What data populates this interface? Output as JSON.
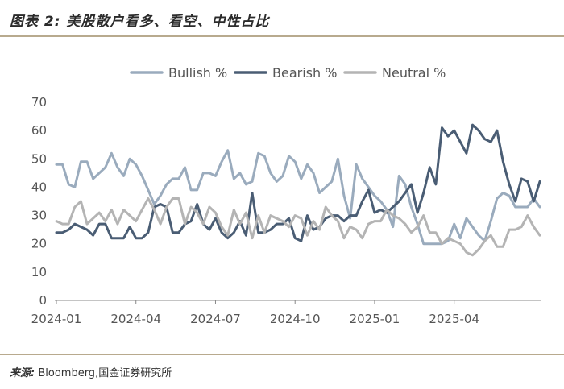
{
  "figure": {
    "title": "图表 2:  美股散户看多、看空、中性占比",
    "source_label": "来源:",
    "source_text": "Bloomberg,国金证券研究所"
  },
  "chart_data": {
    "type": "line",
    "title": "",
    "xlabel": "",
    "ylabel": "",
    "ylim": [
      0,
      70
    ],
    "yticks": [
      0,
      10,
      20,
      30,
      40,
      50,
      60,
      70
    ],
    "xticks": [
      {
        "label": "2024-01",
        "index": 0
      },
      {
        "label": "2024-04",
        "index": 13
      },
      {
        "label": "2024-07",
        "index": 26
      },
      {
        "label": "2024-10",
        "index": 39
      },
      {
        "label": "2025-01",
        "index": 52
      },
      {
        "label": "2025-04",
        "index": 65
      }
    ],
    "legend_position": "top",
    "series": [
      {
        "name": "Bullish %",
        "color": "#9aabbd",
        "values": [
          48,
          48,
          41,
          40,
          49,
          49,
          43,
          45,
          47,
          52,
          47,
          44,
          50,
          48,
          44,
          39,
          34,
          37,
          41,
          43,
          43,
          47,
          39,
          39,
          45,
          45,
          44,
          49,
          53,
          43,
          45,
          41,
          42,
          52,
          51,
          45,
          42,
          44,
          51,
          49,
          43,
          48,
          45,
          38,
          40,
          42,
          50,
          37,
          29,
          48,
          43,
          40,
          37,
          35,
          32,
          26,
          44,
          41,
          33,
          27,
          20,
          20,
          20,
          20,
          21,
          27,
          22,
          29,
          26,
          23,
          21,
          28,
          36,
          38,
          37,
          33,
          33,
          33,
          36,
          33
        ]
      },
      {
        "name": "Bearish %",
        "color": "#4a5d74",
        "values": [
          24,
          24,
          25,
          27,
          26,
          25,
          23,
          27,
          27,
          22,
          22,
          22,
          26,
          22,
          22,
          24,
          33,
          34,
          33,
          24,
          24,
          27,
          28,
          34,
          27,
          25,
          29,
          24,
          22,
          24,
          28,
          23,
          38,
          24,
          24,
          25,
          27,
          27,
          29,
          22,
          21,
          30,
          25,
          26,
          29,
          30,
          30,
          28,
          30,
          30,
          35,
          39,
          31,
          32,
          31,
          33,
          35,
          38,
          41,
          31,
          38,
          47,
          41,
          61,
          58,
          60,
          56,
          52,
          62,
          60,
          57,
          56,
          60,
          49,
          41,
          35,
          43,
          42,
          35,
          42
        ]
      },
      {
        "name": "Neutral %",
        "color": "#b4b4b4",
        "values": [
          28,
          27,
          27,
          33,
          35,
          27,
          29,
          31,
          28,
          32,
          27,
          32,
          30,
          28,
          32,
          36,
          32,
          27,
          33,
          36,
          36,
          27,
          33,
          31,
          27,
          33,
          31,
          26,
          23,
          32,
          27,
          31,
          22,
          30,
          24,
          30,
          29,
          28,
          26,
          30,
          29,
          23,
          28,
          25,
          33,
          30,
          28,
          22,
          26,
          25,
          22,
          27,
          28,
          28,
          32,
          30,
          29,
          27,
          24,
          26,
          30,
          24,
          24,
          20,
          22,
          21,
          20,
          17,
          16,
          18,
          21,
          23,
          19,
          19,
          25,
          25,
          26,
          30,
          26,
          23
        ]
      }
    ]
  }
}
